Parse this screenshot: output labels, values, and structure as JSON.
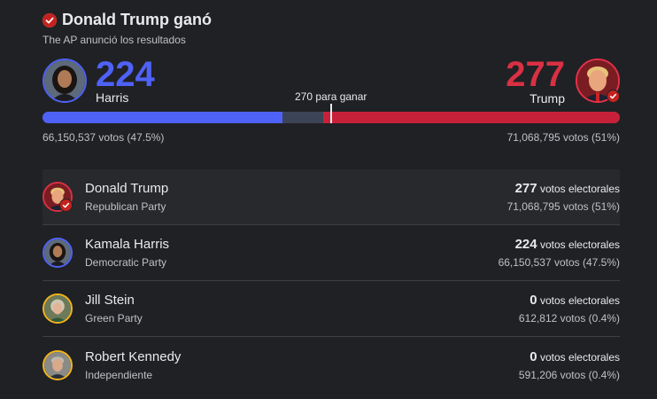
{
  "header": {
    "title": "Donald Trump ganó",
    "subtitle": "The AP anunció los resultados"
  },
  "summary": {
    "harris": {
      "electoral": "224",
      "name": "Harris",
      "votes": "66,150,537 votos (47.5%)"
    },
    "trump": {
      "electoral": "277",
      "name": "Trump",
      "votes": "71,068,795 votos (51%)"
    },
    "to_win_label": "270 para ganar",
    "bar_fractions": {
      "harris": 0.416,
      "other": 0.07,
      "trump": 0.514
    }
  },
  "candidates": [
    {
      "name": "Donald Trump",
      "party": "Republican Party",
      "electoral": "277",
      "ev_unit": "votos electorales",
      "popular": "71,068,795 votos (51%)"
    },
    {
      "name": "Kamala Harris",
      "party": "Democratic Party",
      "electoral": "224",
      "ev_unit": "votos electorales",
      "popular": "66,150,537 votos (47.5%)"
    },
    {
      "name": "Jill Stein",
      "party": "Green Party",
      "electoral": "0",
      "ev_unit": "votos electorales",
      "popular": "612,812 votos (0.4%)"
    },
    {
      "name": "Robert Kennedy",
      "party": "Independiente",
      "electoral": "0",
      "ev_unit": "votos electorales",
      "popular": "591,206 votos (0.4%)"
    }
  ],
  "colors": {
    "harris": "#4f62f7",
    "trump": "#d93044",
    "stein": "#f2b51c",
    "kennedy": "#f2b51c"
  }
}
